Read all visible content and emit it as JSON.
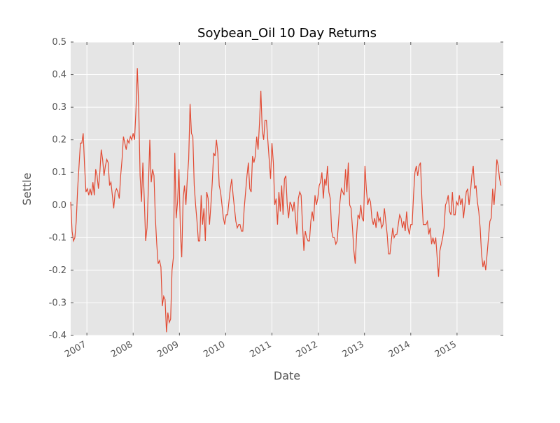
{
  "chart_data": {
    "type": "line",
    "title": "Soybean_Oil 10 Day Returns",
    "x_label": "Date",
    "y_label": "Settle",
    "color": "#e24a33",
    "grid": true,
    "xlim": [
      2006.65,
      2016.0
    ],
    "xticks": [
      2007,
      2008,
      2009,
      2010,
      2011,
      2012,
      2013,
      2014,
      2015
    ],
    "ylim": [
      -0.4,
      0.5
    ],
    "yticks": [
      -0.4,
      -0.3,
      -0.2,
      -0.1,
      {
        "value": 0,
        "label": "0.0"
      },
      0.1,
      0.2,
      0.3,
      0.4,
      0.5
    ],
    "x": [
      2006.65,
      2006.68,
      2006.71,
      2006.74,
      2006.77,
      2006.8,
      2006.83,
      2006.86,
      2006.89,
      2006.92,
      2006.95,
      2006.98,
      2007.01,
      2007.04,
      2007.07,
      2007.1,
      2007.13,
      2007.16,
      2007.19,
      2007.22,
      2007.25,
      2007.28,
      2007.31,
      2007.34,
      2007.37,
      2007.4,
      2007.43,
      2007.46,
      2007.49,
      2007.52,
      2007.55,
      2007.58,
      2007.61,
      2007.64,
      2007.67,
      2007.7,
      2007.73,
      2007.76,
      2007.79,
      2007.82,
      2007.85,
      2007.88,
      2007.91,
      2007.94,
      2007.97,
      2008.0,
      2008.03,
      2008.06,
      2008.09,
      2008.12,
      2008.15,
      2008.18,
      2008.21,
      2008.24,
      2008.27,
      2008.3,
      2008.33,
      2008.36,
      2008.39,
      2008.42,
      2008.45,
      2008.48,
      2008.51,
      2008.54,
      2008.57,
      2008.6,
      2008.63,
      2008.66,
      2008.69,
      2008.72,
      2008.75,
      2008.78,
      2008.81,
      2008.84,
      2008.87,
      2008.9,
      2008.93,
      2008.96,
      2008.99,
      2009.02,
      2009.05,
      2009.08,
      2009.11,
      2009.14,
      2009.17,
      2009.2,
      2009.23,
      2009.26,
      2009.29,
      2009.32,
      2009.35,
      2009.38,
      2009.41,
      2009.44,
      2009.47,
      2009.5,
      2009.53,
      2009.56,
      2009.59,
      2009.62,
      2009.65,
      2009.68,
      2009.71,
      2009.74,
      2009.77,
      2009.8,
      2009.83,
      2009.86,
      2009.89,
      2009.92,
      2009.95,
      2009.98,
      2010.01,
      2010.04,
      2010.07,
      2010.1,
      2010.13,
      2010.16,
      2010.19,
      2010.22,
      2010.25,
      2010.28,
      2010.31,
      2010.34,
      2010.37,
      2010.4,
      2010.43,
      2010.46,
      2010.49,
      2010.52,
      2010.55,
      2010.58,
      2010.61,
      2010.64,
      2010.67,
      2010.7,
      2010.73,
      2010.76,
      2010.79,
      2010.82,
      2010.85,
      2010.88,
      2010.91,
      2010.94,
      2010.97,
      2011.0,
      2011.03,
      2011.06,
      2011.09,
      2011.12,
      2011.15,
      2011.18,
      2011.21,
      2011.24,
      2011.27,
      2011.3,
      2011.33,
      2011.36,
      2011.39,
      2011.42,
      2011.45,
      2011.48,
      2011.51,
      2011.54,
      2011.57,
      2011.6,
      2011.63,
      2011.66,
      2011.69,
      2011.72,
      2011.75,
      2011.78,
      2011.81,
      2011.84,
      2011.87,
      2011.9,
      2011.93,
      2011.96,
      2011.99,
      2012.02,
      2012.05,
      2012.08,
      2012.11,
      2012.14,
      2012.17,
      2012.2,
      2012.23,
      2012.26,
      2012.29,
      2012.32,
      2012.35,
      2012.38,
      2012.41,
      2012.44,
      2012.47,
      2012.5,
      2012.53,
      2012.56,
      2012.59,
      2012.62,
      2012.65,
      2012.68,
      2012.71,
      2012.74,
      2012.77,
      2012.8,
      2012.83,
      2012.86,
      2012.89,
      2012.92,
      2012.95,
      2012.98,
      2013.01,
      2013.04,
      2013.07,
      2013.1,
      2013.13,
      2013.16,
      2013.19,
      2013.22,
      2013.25,
      2013.28,
      2013.31,
      2013.34,
      2013.37,
      2013.4,
      2013.43,
      2013.46,
      2013.49,
      2013.52,
      2013.55,
      2013.58,
      2013.61,
      2013.64,
      2013.67,
      2013.7,
      2013.73,
      2013.76,
      2013.79,
      2013.82,
      2013.85,
      2013.88,
      2013.91,
      2013.94,
      2013.97,
      2014.0,
      2014.03,
      2014.06,
      2014.09,
      2014.12,
      2014.15,
      2014.18,
      2014.21,
      2014.24,
      2014.27,
      2014.3,
      2014.33,
      2014.36,
      2014.39,
      2014.42,
      2014.45,
      2014.48,
      2014.51,
      2014.54,
      2014.57,
      2014.6,
      2014.63,
      2014.66,
      2014.69,
      2014.72,
      2014.75,
      2014.78,
      2014.81,
      2014.84,
      2014.87,
      2014.9,
      2014.93,
      2014.96,
      2014.99,
      2015.02,
      2015.05,
      2015.08,
      2015.11,
      2015.14,
      2015.17,
      2015.2,
      2015.23,
      2015.26,
      2015.29,
      2015.32,
      2015.35,
      2015.38,
      2015.41,
      2015.44,
      2015.47,
      2015.5,
      2015.53,
      2015.56,
      2015.59,
      2015.62,
      2015.65,
      2015.68,
      2015.71,
      2015.74,
      2015.77,
      2015.8,
      2015.83,
      2015.86,
      2015.89,
      2015.92,
      2015.95
    ],
    "values": [
      0.01,
      -0.08,
      -0.11,
      -0.1,
      -0.05,
      0.05,
      0.12,
      0.19,
      0.19,
      0.22,
      0.12,
      0.04,
      0.05,
      0.03,
      0.05,
      0.03,
      0.07,
      0.03,
      0.11,
      0.09,
      0.05,
      0.1,
      0.17,
      0.14,
      0.09,
      0.12,
      0.14,
      0.13,
      0.06,
      0.07,
      0.03,
      -0.01,
      0.04,
      0.05,
      0.04,
      0.02,
      0.09,
      0.14,
      0.21,
      0.19,
      0.17,
      0.2,
      0.19,
      0.21,
      0.2,
      0.22,
      0.2,
      0.29,
      0.42,
      0.3,
      0.09,
      0.01,
      0.13,
      0.02,
      -0.11,
      -0.07,
      0.06,
      0.2,
      0.07,
      0.11,
      0.09,
      -0.04,
      -0.12,
      -0.18,
      -0.17,
      -0.19,
      -0.31,
      -0.28,
      -0.29,
      -0.39,
      -0.33,
      -0.36,
      -0.35,
      -0.2,
      -0.16,
      0.16,
      -0.04,
      0.01,
      0.11,
      -0.08,
      -0.16,
      0.02,
      0.06,
      0.0,
      0.08,
      0.14,
      0.31,
      0.22,
      0.21,
      0.06,
      0.0,
      -0.05,
      -0.11,
      -0.11,
      0.03,
      -0.06,
      -0.01,
      -0.11,
      0.04,
      0.02,
      -0.06,
      0.0,
      0.07,
      0.16,
      0.15,
      0.2,
      0.16,
      0.06,
      0.04,
      0.0,
      -0.04,
      -0.06,
      -0.03,
      -0.03,
      0.01,
      0.05,
      0.08,
      0.03,
      -0.01,
      -0.05,
      -0.07,
      -0.06,
      -0.06,
      -0.08,
      -0.08,
      -0.01,
      0.04,
      0.09,
      0.13,
      0.05,
      0.04,
      0.15,
      0.13,
      0.15,
      0.21,
      0.17,
      0.25,
      0.35,
      0.23,
      0.2,
      0.26,
      0.26,
      0.2,
      0.14,
      0.08,
      0.19,
      0.13,
      0.0,
      0.02,
      -0.06,
      0.04,
      -0.02,
      0.06,
      -0.03,
      0.08,
      0.09,
      0.0,
      -0.04,
      0.01,
      0.0,
      -0.02,
      0.01,
      -0.04,
      -0.09,
      0.02,
      0.04,
      0.03,
      -0.06,
      -0.14,
      -0.08,
      -0.1,
      -0.11,
      -0.11,
      -0.05,
      -0.02,
      -0.05,
      0.03,
      0.0,
      0.02,
      0.06,
      0.07,
      0.1,
      0.02,
      0.08,
      0.06,
      0.12,
      0.04,
      0.02,
      -0.08,
      -0.1,
      -0.1,
      -0.12,
      -0.11,
      -0.05,
      0.01,
      0.05,
      0.04,
      0.03,
      0.11,
      0.04,
      0.13,
      0.0,
      -0.01,
      -0.07,
      -0.14,
      -0.18,
      -0.09,
      -0.03,
      -0.04,
      0.0,
      -0.04,
      -0.05,
      0.12,
      0.05,
      0.0,
      0.02,
      0.01,
      -0.04,
      -0.06,
      -0.04,
      -0.07,
      -0.02,
      -0.05,
      -0.04,
      -0.07,
      -0.06,
      -0.01,
      -0.05,
      -0.09,
      -0.15,
      -0.15,
      -0.11,
      -0.07,
      -0.1,
      -0.09,
      -0.09,
      -0.06,
      -0.03,
      -0.04,
      -0.07,
      -0.05,
      -0.08,
      -0.02,
      -0.07,
      -0.09,
      -0.06,
      -0.06,
      0.03,
      0.1,
      0.12,
      0.09,
      0.12,
      0.13,
      0.02,
      -0.06,
      -0.06,
      -0.06,
      -0.05,
      -0.09,
      -0.07,
      -0.12,
      -0.1,
      -0.12,
      -0.1,
      -0.16,
      -0.22,
      -0.14,
      -0.12,
      -0.1,
      -0.07,
      0.0,
      0.01,
      0.03,
      -0.02,
      -0.03,
      0.04,
      -0.03,
      -0.03,
      0.01,
      0.0,
      0.03,
      0.0,
      0.02,
      -0.04,
      0.0,
      0.04,
      0.05,
      0.0,
      0.04,
      0.09,
      0.12,
      0.05,
      0.06,
      0.01,
      -0.02,
      -0.07,
      -0.15,
      -0.19,
      -0.17,
      -0.2,
      -0.15,
      -0.1,
      -0.05,
      -0.04,
      0.05,
      0.0,
      0.06,
      0.14,
      0.12,
      0.08,
      0.06
    ]
  }
}
